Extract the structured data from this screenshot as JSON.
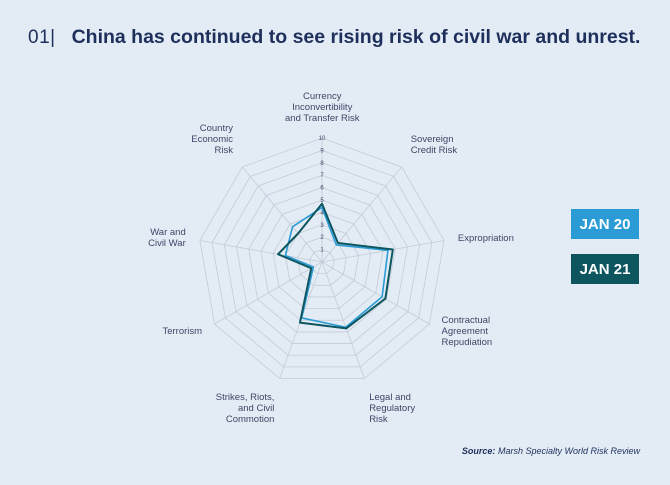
{
  "header": {
    "number": "01|",
    "title": "China has continued to see rising risk of civil war and unrest."
  },
  "legend": {
    "items": [
      {
        "label": "JAN 20",
        "color": "#2b9bd6"
      },
      {
        "label": "JAN 21",
        "color": "#0d5660"
      }
    ]
  },
  "source": {
    "prefix": "Source:",
    "text": "Marsh Specialty World Risk Review"
  },
  "chart_data": {
    "type": "radar",
    "title": "",
    "scale": {
      "min": 0,
      "max": 10,
      "ticks": [
        "1",
        "2",
        "3",
        "4",
        "5",
        "6",
        "7",
        "8",
        "9",
        "10"
      ]
    },
    "axes": [
      {
        "lines": [
          "Currency",
          "Inconvertibility",
          "and Transfer Risk"
        ]
      },
      {
        "lines": [
          "Sovereign",
          "Credit Risk"
        ]
      },
      {
        "lines": [
          "Expropriation"
        ]
      },
      {
        "lines": [
          "Contractual",
          "Agreement",
          "Repudiation"
        ]
      },
      {
        "lines": [
          "Legal and",
          "Regulatory",
          "Risk"
        ]
      },
      {
        "lines": [
          "Strikes, Riots,",
          "and Civil",
          "Commotion"
        ]
      },
      {
        "lines": [
          "Terrorism"
        ]
      },
      {
        "lines": [
          "War and",
          "Civil War"
        ]
      },
      {
        "lines": [
          "Country",
          "Economic",
          "Risk"
        ]
      }
    ],
    "series": [
      {
        "name": "JAN 20",
        "color": "#2b9bd6",
        "values": [
          4.4,
          1.8,
          5.4,
          5.6,
          5.6,
          4.8,
          0.8,
          3.0,
          3.7
        ]
      },
      {
        "name": "JAN 21",
        "color": "#0d5660",
        "values": [
          4.7,
          2.0,
          5.8,
          5.9,
          5.7,
          5.2,
          1.0,
          3.6,
          3.0
        ]
      }
    ],
    "grid": true
  }
}
